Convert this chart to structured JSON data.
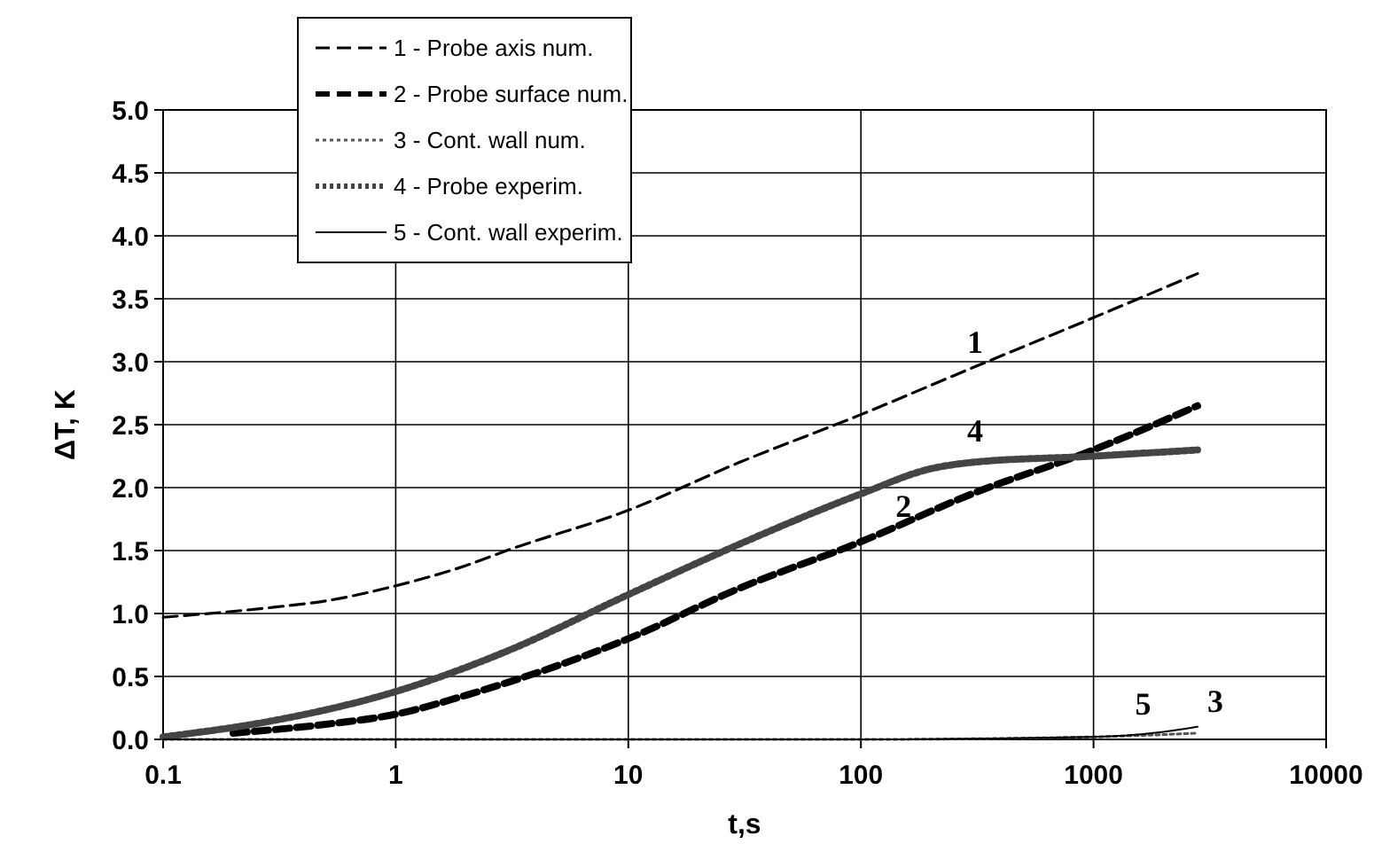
{
  "chart_data": {
    "type": "line",
    "xlabel": "t,s",
    "ylabel": "ΔT, K",
    "log": "x",
    "grid": true,
    "legend": "top left",
    "xlim": [
      0.1,
      10000
    ],
    "xticks": [
      0.1,
      1,
      10,
      100,
      1000,
      10000
    ],
    "ylim": [
      0,
      5
    ],
    "yticks": [
      {
        "value": 0,
        "label": "0.0"
      },
      {
        "value": 0.5,
        "label": "0.5"
      },
      {
        "value": 1,
        "label": "1.0"
      },
      {
        "value": 1.5,
        "label": "1.5"
      },
      {
        "value": 2,
        "label": "2.0"
      },
      {
        "value": 2.5,
        "label": "2.5"
      },
      {
        "value": 3,
        "label": "3.0"
      },
      {
        "value": 3.5,
        "label": "3.5"
      },
      {
        "value": 4,
        "label": "4.0"
      },
      {
        "value": 4.5,
        "label": "4.5"
      },
      {
        "value": 5,
        "label": "5.0"
      }
    ],
    "series": [
      {
        "name": "1 - Probe axis num.",
        "color": "#000000",
        "line_style": "dashed",
        "x": [
          0.1,
          0.3,
          0.5,
          1,
          2,
          3,
          10,
          30,
          100,
          300,
          1000,
          2800
        ],
        "values": [
          0.97,
          1.05,
          1.1,
          1.22,
          1.38,
          1.5,
          1.82,
          2.2,
          2.58,
          2.95,
          3.35,
          3.7
        ]
      },
      {
        "name": "2 - Probe surface num.",
        "color": "#000000",
        "line_style": "dashed",
        "x": [
          0.2,
          0.5,
          1,
          2,
          3,
          10,
          30,
          100,
          300,
          1000,
          2800
        ],
        "values": [
          0.05,
          0.12,
          0.2,
          0.35,
          0.45,
          0.8,
          1.2,
          1.57,
          1.95,
          2.3,
          2.65
        ]
      },
      {
        "name": "3 - Cont. wall num.",
        "color": "#555555",
        "line_style": "dotted",
        "x": [
          0.1,
          1,
          10,
          100,
          1000,
          2800
        ],
        "values": [
          0,
          0,
          0,
          0,
          0.02,
          0.05
        ]
      },
      {
        "name": "4 - Probe experim.",
        "color": "#444444",
        "line_style": "dotted",
        "x": [
          0.1,
          0.3,
          1,
          3,
          10,
          30,
          100,
          200,
          300,
          1000,
          2800
        ],
        "values": [
          0.02,
          0.15,
          0.38,
          0.7,
          1.15,
          1.55,
          1.95,
          2.15,
          2.2,
          2.25,
          2.3
        ]
      },
      {
        "name": "5 - Cont. wall experim.",
        "color": "#000000",
        "line_style": "solid",
        "x": [
          0.1,
          1,
          10,
          100,
          1000,
          2000,
          2800
        ],
        "values": [
          0,
          0,
          0,
          0,
          0.02,
          0.06,
          0.1
        ]
      }
    ],
    "annotations": [
      {
        "text": "1",
        "x": 260,
        "y": 2.9
      },
      {
        "text": "4",
        "x": 260,
        "y": 2.2
      },
      {
        "text": "2",
        "x": 128,
        "y": 1.6
      },
      {
        "text": "5",
        "x": 1370,
        "y": 0.03
      },
      {
        "text": "3",
        "x": 2800,
        "y": 0.05
      }
    ]
  }
}
